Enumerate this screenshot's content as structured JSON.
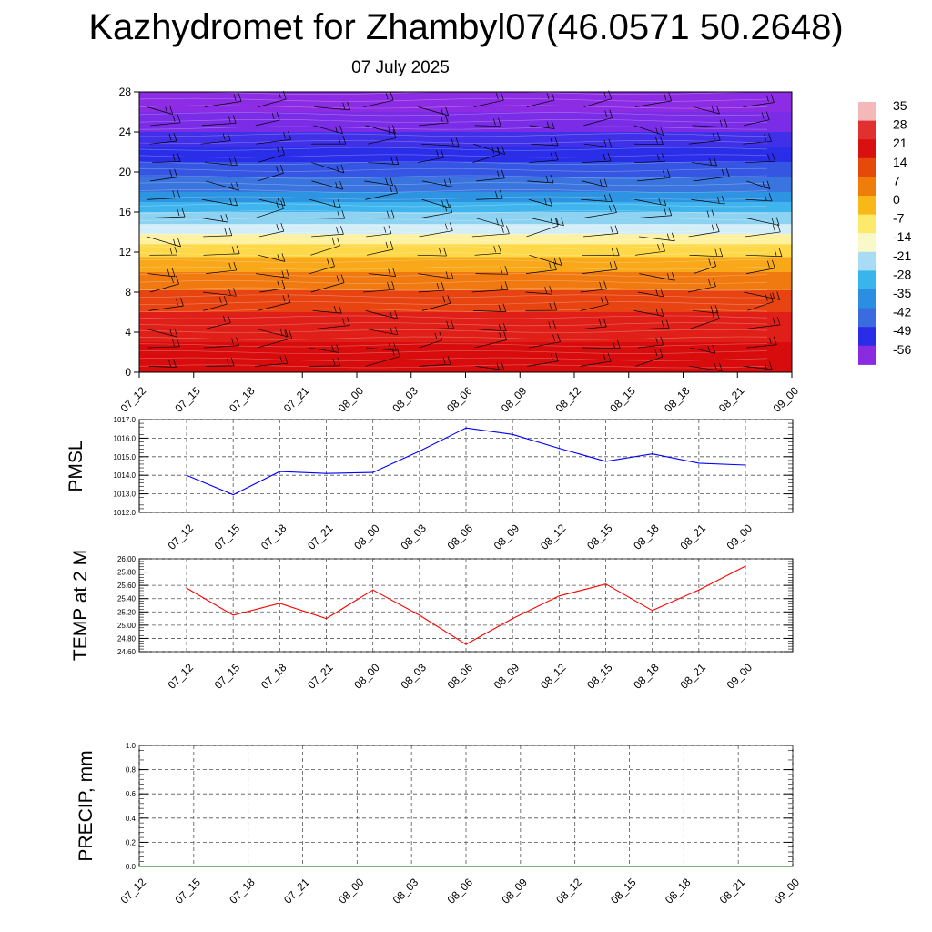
{
  "title": "Kazhydromet for Zhambyl07(46.0571 50.2648)",
  "subtitle": "07 July 2025",
  "chart_data": [
    {
      "type": "heatmap",
      "name": "temperature-height cross section with wind barbs",
      "x_categories": [
        "07_12",
        "07_15",
        "07_18",
        "07_21",
        "08_00",
        "08_03",
        "08_06",
        "08_09",
        "08_12",
        "08_15",
        "08_18",
        "08_21",
        "09_00"
      ],
      "y_ticks": [
        0,
        4,
        8,
        12,
        16,
        20,
        24,
        28
      ],
      "ylim": [
        0,
        28
      ],
      "colorbar": {
        "labels": [
          35,
          28,
          21,
          14,
          7,
          0,
          -7,
          -14,
          -21,
          -28,
          -35,
          -42,
          -49,
          -56
        ],
        "colors": [
          "#f4b8b8",
          "#e23030",
          "#d91010",
          "#e64a0a",
          "#f07c0a",
          "#f9b81a",
          "#fde96a",
          "#f8f8c8",
          "#a8dcf5",
          "#38b6ec",
          "#2c8ee0",
          "#3a6bdf",
          "#2b2ce8",
          "#8a2be2"
        ]
      },
      "bands": [
        {
          "from": 0,
          "to": 3,
          "color": "#d80c0c"
        },
        {
          "from": 3,
          "to": 6,
          "color": "#e02018"
        },
        {
          "from": 6,
          "to": 8.2,
          "color": "#e84412"
        },
        {
          "from": 8.2,
          "to": 10,
          "color": "#f07a10"
        },
        {
          "from": 10,
          "to": 11.5,
          "color": "#f8a818"
        },
        {
          "from": 11.5,
          "to": 12.8,
          "color": "#fdd848"
        },
        {
          "from": 12.8,
          "to": 13.8,
          "color": "#fef2a0"
        },
        {
          "from": 13.8,
          "to": 14.8,
          "color": "#d4eef8"
        },
        {
          "from": 14.8,
          "to": 16,
          "color": "#8ed2f2"
        },
        {
          "from": 16,
          "to": 17,
          "color": "#40b4ec"
        },
        {
          "from": 17,
          "to": 18,
          "color": "#2c94e0"
        },
        {
          "from": 18,
          "to": 19.5,
          "color": "#3a74de"
        },
        {
          "from": 19.5,
          "to": 21,
          "color": "#3456e2"
        },
        {
          "from": 21,
          "to": 22.5,
          "color": "#2a2ee8"
        },
        {
          "from": 22.5,
          "to": 24,
          "color": "#4030e8"
        },
        {
          "from": 24,
          "to": 26,
          "color": "#7a2ce6"
        },
        {
          "from": 26,
          "to": 28,
          "color": "#8c2ce4"
        }
      ]
    },
    {
      "type": "line",
      "ylabel": "PMSL",
      "categories": [
        "07_12",
        "07_15",
        "07_18",
        "07_21",
        "08_00",
        "08_03",
        "08_06",
        "08_09",
        "08_12",
        "08_15",
        "08_18",
        "08_21",
        "09_00"
      ],
      "yticks": [
        "1012.0",
        "1013.0",
        "1014.0",
        "1015.0",
        "1016.0",
        "1017.0"
      ],
      "ylim": [
        1012,
        1017
      ],
      "series": [
        {
          "color": "#0000ff",
          "values": [
            1014.0,
            1012.95,
            1014.2,
            1014.1,
            1014.15,
            1015.3,
            1016.55,
            1016.2,
            1015.45,
            1014.75,
            1015.15,
            1014.65,
            1014.55
          ]
        }
      ]
    },
    {
      "type": "line",
      "ylabel": "TEMP at 2 M",
      "categories": [
        "07_12",
        "07_15",
        "07_18",
        "07_21",
        "08_00",
        "08_03",
        "08_06",
        "08_09",
        "08_12",
        "08_15",
        "08_18",
        "08_21",
        "09_00"
      ],
      "yticks": [
        "24.60",
        "24.80",
        "25.00",
        "25.20",
        "25.40",
        "25.60",
        "25.80",
        "26.00"
      ],
      "ylim": [
        24.6,
        26.0
      ],
      "series": [
        {
          "color": "#ff0000",
          "values": [
            25.56,
            25.15,
            25.33,
            25.1,
            25.53,
            25.15,
            24.71,
            25.1,
            25.44,
            25.62,
            25.22,
            25.53,
            25.89
          ]
        }
      ]
    },
    {
      "type": "line",
      "ylabel": "PRECIP, mm",
      "categories": [
        "07_12",
        "07_15",
        "07_18",
        "07_21",
        "08_00",
        "08_03",
        "08_06",
        "08_09",
        "08_12",
        "08_15",
        "08_18",
        "08_21",
        "09_00"
      ],
      "yticks": [
        "0.0",
        "0.2",
        "0.4",
        "0.6",
        "0.8",
        "1.0"
      ],
      "ylim": [
        0,
        1
      ],
      "series": [
        {
          "color": "#006400",
          "values": [
            0,
            0,
            0,
            0,
            0,
            0,
            0,
            0,
            0,
            0,
            0,
            0,
            0
          ]
        }
      ]
    }
  ]
}
